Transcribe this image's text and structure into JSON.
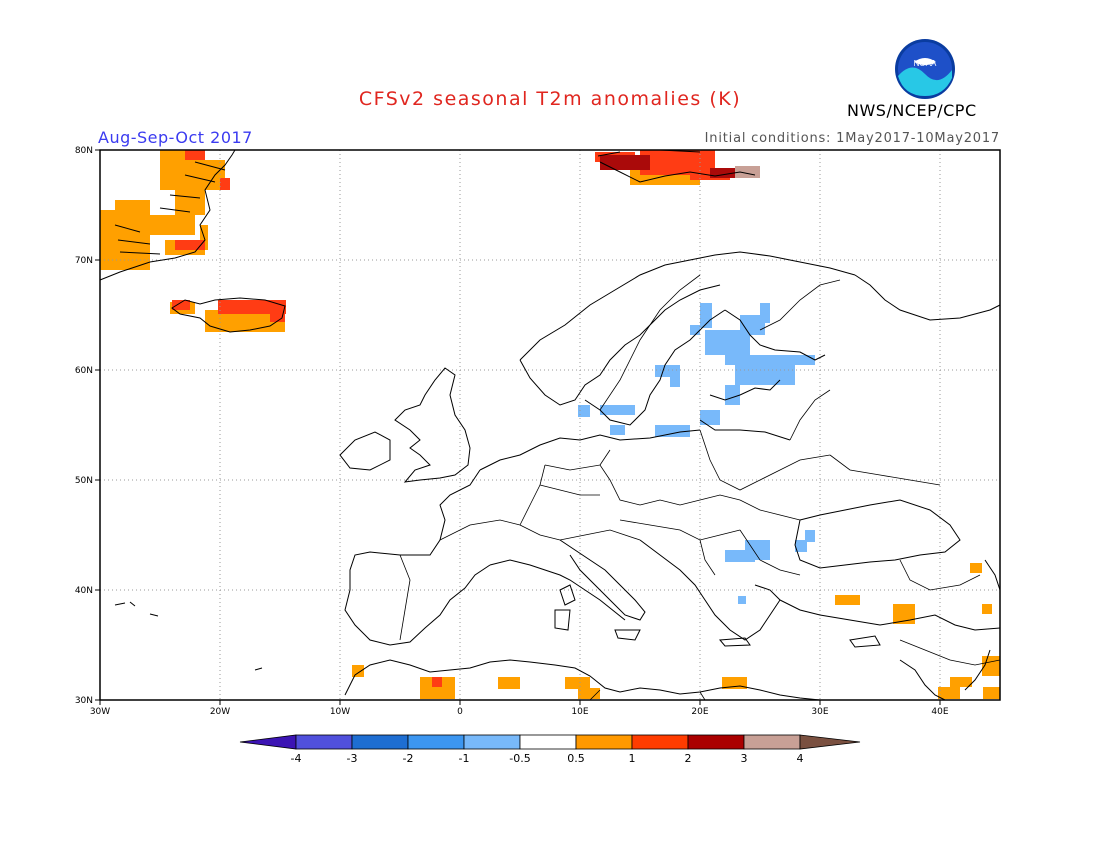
{
  "header": {
    "title": "CFSv2 seasonal T2m anomalies (K)",
    "period": "Aug-Sep-Oct 2017",
    "initial_conditions": "Initial conditions: 1May2017-10May2017",
    "agency": "NWS/NCEP/CPC",
    "logo_text": "NOAA"
  },
  "map": {
    "lon_range": [
      -30,
      45
    ],
    "lat_range": [
      30,
      80
    ],
    "lon_ticks": [
      "30W",
      "20W",
      "10W",
      "0",
      "10E",
      "20E",
      "30E",
      "40E"
    ],
    "lat_ticks": [
      "30N",
      "40N",
      "50N",
      "60N",
      "70N",
      "80N"
    ],
    "grid": "dotted"
  },
  "colorbar": {
    "labels": [
      "-4",
      "-3",
      "-2",
      "-1",
      "-0.5",
      "0.5",
      "1",
      "2",
      "3",
      "4"
    ],
    "colors": [
      "#3c14b4",
      "#5050dc",
      "#1e6ed2",
      "#3c96f0",
      "#78b9fa",
      "#ffffff",
      "#ff9900",
      "#ff3c00",
      "#aa0000",
      "#c8a096",
      "#7a5040"
    ]
  },
  "anomaly_colors": {
    "warm1": "#ffa000",
    "warm2": "#ff3c14",
    "warm3": "#aa0a0a",
    "warm4": "#c8a096",
    "cool1": "#78b9fa"
  }
}
